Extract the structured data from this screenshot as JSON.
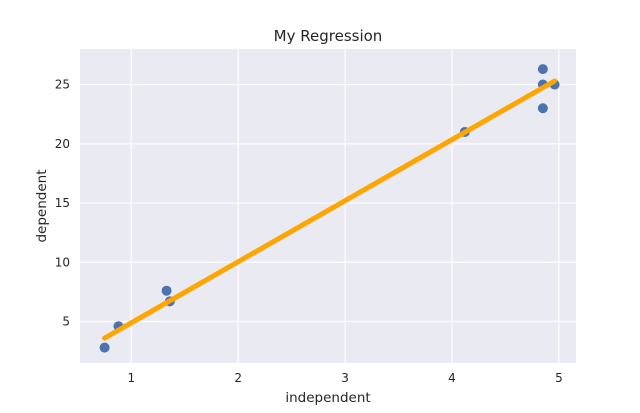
{
  "chart_data": {
    "type": "scatter",
    "title": "My Regression",
    "xlabel": "independent",
    "ylabel": "dependent",
    "xlim": [
      0.52,
      5.16
    ],
    "ylim": [
      1.5,
      28.0
    ],
    "xticks": [
      1,
      2,
      3,
      4,
      5
    ],
    "yticks": [
      5,
      10,
      15,
      20,
      25
    ],
    "grid": true,
    "colors": {
      "background": "#eaeaf2",
      "grid": "#ffffff",
      "points": "#4c72b0",
      "line": "#ffa500"
    },
    "series": [
      {
        "type": "scatter",
        "points": [
          {
            "x": 0.75,
            "y": 2.8
          },
          {
            "x": 0.88,
            "y": 4.6
          },
          {
            "x": 1.33,
            "y": 7.6
          },
          {
            "x": 1.36,
            "y": 6.7
          },
          {
            "x": 4.12,
            "y": 21.0
          },
          {
            "x": 4.85,
            "y": 26.3
          },
          {
            "x": 4.85,
            "y": 25.0
          },
          {
            "x": 4.96,
            "y": 25.0
          },
          {
            "x": 4.85,
            "y": 23.0
          }
        ]
      },
      {
        "type": "line",
        "points": [
          {
            "x": 0.75,
            "y": 3.6
          },
          {
            "x": 4.96,
            "y": 25.3
          }
        ]
      }
    ]
  }
}
